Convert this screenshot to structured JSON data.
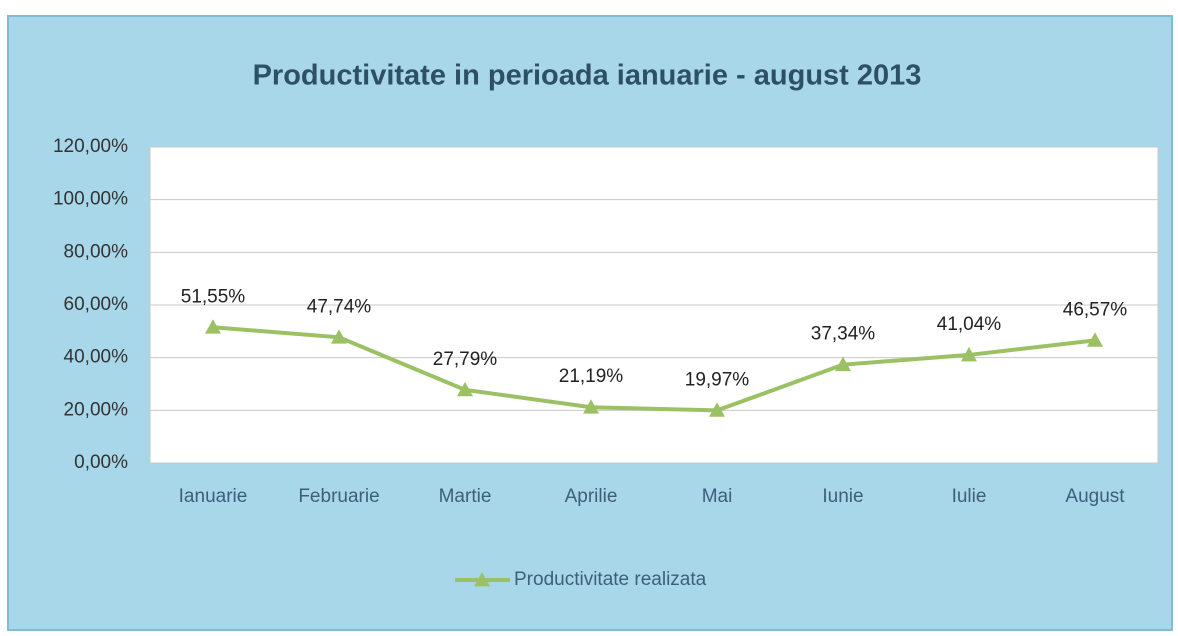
{
  "chart_data": {
    "type": "line",
    "title": "Productivitate in perioada ianuarie - august 2013",
    "categories": [
      "Ianuarie",
      "Februarie",
      "Martie",
      "Aprilie",
      "Mai",
      "Iunie",
      "Iulie",
      "August"
    ],
    "series": [
      {
        "name": "Productivitate realizata",
        "color": "#9bc164",
        "values": [
          51.55,
          47.74,
          27.79,
          21.19,
          19.97,
          37.34,
          41.04,
          46.57
        ],
        "value_labels": [
          "51,55%",
          "47,74%",
          "27,79%",
          "21,19%",
          "19,97%",
          "37,34%",
          "41,04%",
          "46,57%"
        ]
      }
    ],
    "ylim": [
      0,
      120
    ],
    "yticks": [
      {
        "value": 0,
        "label": "0,00%"
      },
      {
        "value": 20,
        "label": "20,00%"
      },
      {
        "value": 40,
        "label": "40,00%"
      },
      {
        "value": 60,
        "label": "60,00%"
      },
      {
        "value": 80,
        "label": "80,00%"
      },
      {
        "value": 100,
        "label": "100,00%"
      },
      {
        "value": 120,
        "label": "120,00%"
      }
    ],
    "grid": true,
    "legend": "bottom"
  }
}
